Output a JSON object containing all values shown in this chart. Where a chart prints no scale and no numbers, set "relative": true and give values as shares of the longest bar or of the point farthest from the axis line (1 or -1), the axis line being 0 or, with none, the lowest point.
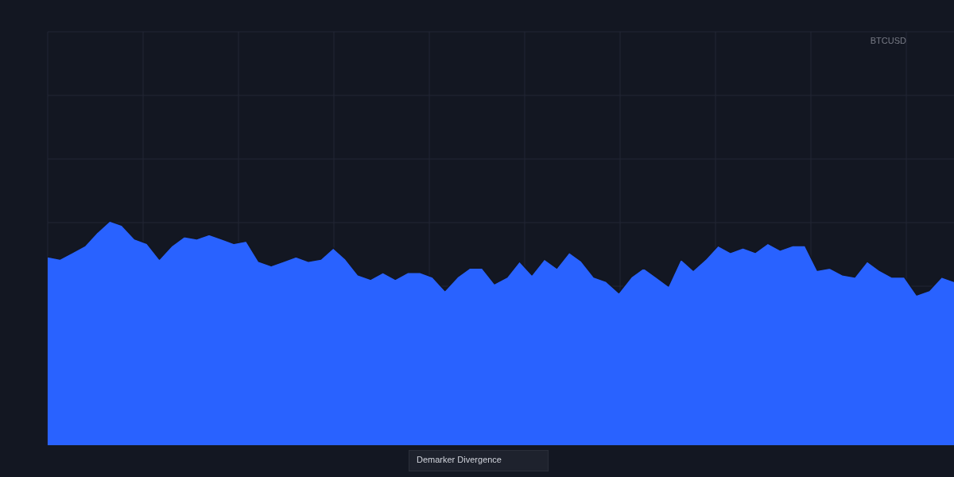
{
  "chart_data": {
    "type": "area",
    "title": "BTCUSD",
    "annotations": [
      "Demarker Divergence"
    ],
    "relative": true,
    "grid": true,
    "color": "#2962ff",
    "categories": [
      null,
      null,
      null,
      null,
      null,
      null,
      null,
      null,
      null,
      null,
      null,
      null,
      null,
      null,
      null,
      null,
      null,
      null,
      null,
      null,
      null,
      null,
      null,
      null,
      null,
      null,
      null,
      null,
      null,
      null,
      null,
      null,
      null,
      null,
      null,
      null,
      null,
      null,
      null,
      null,
      null,
      null,
      null,
      null,
      null,
      null,
      null,
      null,
      null,
      null,
      null,
      null,
      null,
      null,
      null,
      null,
      null,
      null,
      null,
      null,
      null,
      null,
      null,
      null,
      null,
      null,
      null,
      null,
      null,
      null,
      null,
      null,
      null,
      null
    ],
    "values": [
      0.84,
      0.83,
      0.86,
      0.89,
      0.95,
      1,
      0.98,
      0.92,
      0.9,
      0.83,
      0.89,
      0.93,
      0.92,
      0.94,
      0.92,
      0.9,
      0.91,
      0.82,
      0.8,
      0.82,
      0.84,
      0.82,
      0.83,
      0.88,
      0.83,
      0.76,
      0.74,
      0.77,
      0.74,
      0.77,
      0.77,
      0.75,
      0.69,
      0.75,
      0.79,
      0.79,
      0.72,
      0.75,
      0.82,
      0.76,
      0.83,
      0.79,
      0.86,
      0.82,
      0.75,
      0.73,
      0.68,
      0.75,
      0.79,
      0.75,
      0.71,
      0.83,
      0.78,
      0.83,
      0.89,
      0.86,
      0.88,
      0.86,
      0.9,
      0.87,
      0.89,
      0.89,
      0.78,
      0.79,
      0.76,
      0.75,
      0.82,
      0.78,
      0.75,
      0.75,
      0.67,
      0.69,
      0.75,
      0.73
    ]
  }
}
